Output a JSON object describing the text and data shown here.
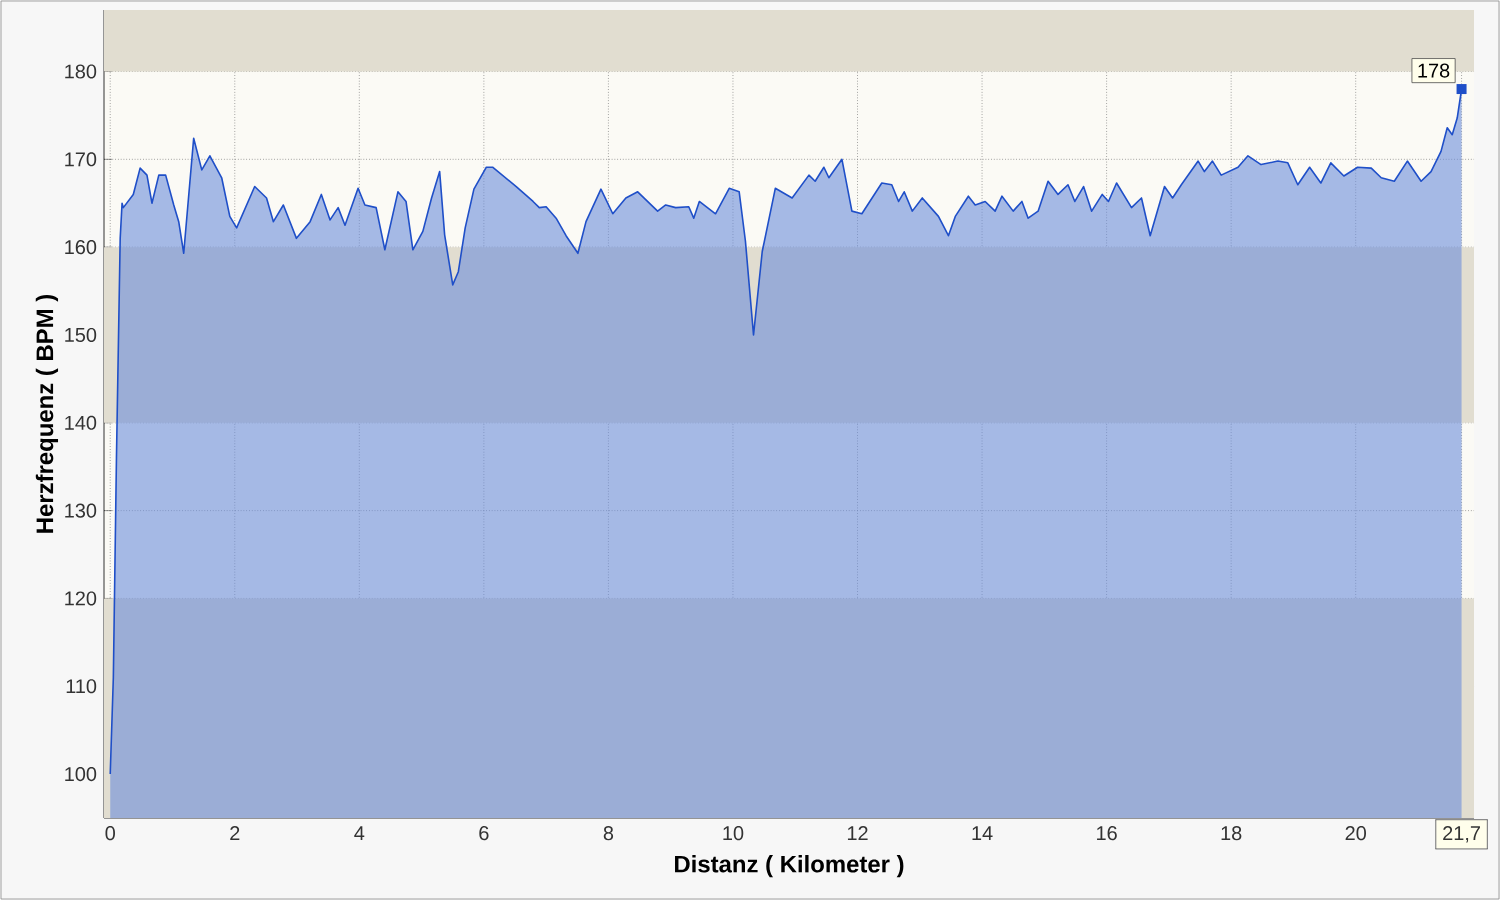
{
  "chart_data": {
    "type": "area",
    "xlabel": "Distanz ( Kilometer )",
    "ylabel": "Herzfrequenz ( BPM )",
    "xlim": [
      -0.1,
      21.9
    ],
    "ylim": [
      95,
      187
    ],
    "xticks": [
      0,
      2,
      4,
      6,
      8,
      10,
      12,
      14,
      16,
      18,
      20,
      {
        "value": 21.7,
        "label": "21,7"
      }
    ],
    "yticks": [
      100,
      110,
      120,
      130,
      140,
      150,
      160,
      170,
      180
    ],
    "grid": true,
    "bands": [
      {
        "axis": "y",
        "from": 180,
        "to": 187,
        "color": "#e1ddd0"
      },
      {
        "axis": "y",
        "from": 140,
        "to": 160,
        "color": "#e1ddd0"
      },
      {
        "axis": "y",
        "from": 95,
        "to": 120,
        "color": "#e1ddd0"
      }
    ],
    "annotations": [
      {
        "text": "178",
        "x": 21.7,
        "y": 178
      }
    ],
    "series": [
      {
        "color": "#1f4fc8",
        "x": [
          0,
          0.05,
          0.1,
          0.16,
          0.19,
          0.21,
          0.37,
          0.48,
          0.59,
          0.67,
          0.78,
          0.89,
          1.02,
          1.1,
          1.18,
          1.34,
          1.47,
          1.6,
          1.79,
          1.92,
          2.03,
          2.32,
          2.51,
          2.62,
          2.78,
          2.99,
          3.21,
          3.39,
          3.53,
          3.66,
          3.77,
          3.98,
          4.09,
          4.27,
          4.41,
          4.62,
          4.75,
          4.86,
          5.02,
          5.16,
          5.29,
          5.37,
          5.5,
          5.59,
          5.7,
          5.84,
          6.04,
          6.14,
          6.52,
          6.79,
          6.89,
          7.0,
          7.16,
          7.32,
          7.51,
          7.64,
          7.88,
          8.07,
          8.28,
          8.47,
          8.79,
          8.92,
          9.08,
          9.29,
          9.37,
          9.46,
          9.72,
          9.94,
          10.1,
          10.2,
          10.33,
          10.47,
          10.68,
          10.95,
          11.22,
          11.32,
          11.46,
          11.54,
          11.75,
          11.91,
          12.07,
          12.39,
          12.55,
          12.66,
          12.75,
          12.88,
          13.04,
          13.3,
          13.46,
          13.57,
          13.78,
          13.89,
          14.05,
          14.21,
          14.32,
          14.5,
          14.64,
          14.74,
          14.9,
          15.06,
          15.22,
          15.38,
          15.49,
          15.63,
          15.76,
          15.93,
          16.03,
          16.16,
          16.4,
          16.56,
          16.7,
          16.93,
          17.06,
          17.2,
          17.47,
          17.57,
          17.7,
          17.84,
          18.11,
          18.27,
          18.48,
          18.75,
          18.91,
          19.07,
          19.26,
          19.44,
          19.6,
          19.81,
          20.03,
          20.25,
          20.41,
          20.62,
          20.83,
          21.05,
          21.21,
          21.37,
          21.47,
          21.55,
          21.63,
          21.7
        ],
        "values": [
          100,
          111,
          136,
          161,
          165,
          164.5,
          166,
          169,
          168.2,
          165,
          168.2,
          168.2,
          164.8,
          162.9,
          159.3,
          172.4,
          168.8,
          170.4,
          167.9,
          163.5,
          162.2,
          166.9,
          165.6,
          162.9,
          164.8,
          161,
          162.9,
          166,
          163.1,
          164.5,
          162.5,
          166.7,
          164.8,
          164.5,
          159.7,
          166.3,
          165.2,
          159.7,
          161.8,
          165.6,
          168.6,
          161.4,
          155.7,
          157.2,
          162.2,
          166.6,
          169.1,
          169.1,
          166.9,
          165.2,
          164.5,
          164.6,
          163.3,
          161.3,
          159.3,
          162.9,
          166.6,
          163.8,
          165.6,
          166.3,
          164.1,
          164.8,
          164.5,
          164.6,
          163.3,
          165.2,
          163.8,
          166.7,
          166.3,
          160.7,
          150,
          159.5,
          166.7,
          165.6,
          168.2,
          167.5,
          169.1,
          167.9,
          170,
          164.1,
          163.8,
          167.3,
          167.1,
          165.2,
          166.3,
          164.1,
          165.6,
          163.5,
          161.3,
          163.5,
          165.8,
          164.8,
          165.2,
          164.1,
          165.8,
          164.1,
          165.2,
          163.3,
          164.1,
          167.5,
          166,
          167.1,
          165.2,
          166.9,
          164.1,
          166,
          165.2,
          167.3,
          164.5,
          165.6,
          161.3,
          166.9,
          165.6,
          167.1,
          169.8,
          168.6,
          169.8,
          168.2,
          169.1,
          170.4,
          169.4,
          169.8,
          169.6,
          167.1,
          169.1,
          167.3,
          169.6,
          168.1,
          169.1,
          169,
          167.9,
          167.5,
          169.8,
          167.5,
          168.6,
          170.9,
          173.6,
          172.8,
          174.7,
          178
        ]
      }
    ]
  }
}
